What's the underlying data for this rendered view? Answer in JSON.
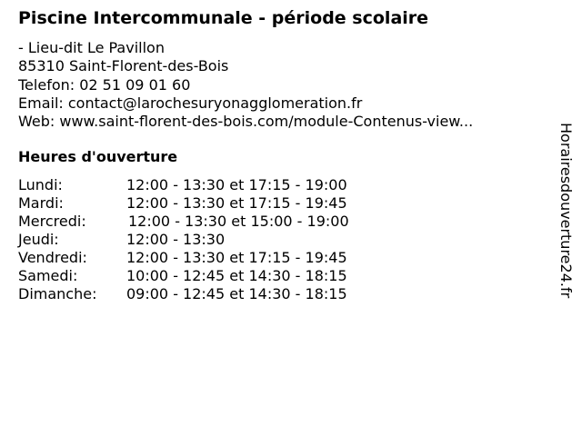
{
  "title": "Piscine Intercommunale - période scolaire",
  "address": {
    "street": "- Lieu-dit Le Pavillon",
    "city": "85310 Saint-Florent-des-Bois",
    "phone": "Telefon: 02 51 09 01 60",
    "email": "Email: contact@larochesuryonagglomeration.fr",
    "web": "Web: www.saint-florent-des-bois.com/module-Contenus-view..."
  },
  "hours_heading": "Heures d'ouverture",
  "hours": [
    {
      "day": "Lundi:",
      "time": "12:00 - 13:30 et 17:15 - 19:00"
    },
    {
      "day": "Mardi:",
      "time": "12:00 - 13:30 et 17:15 - 19:45"
    },
    {
      "day": "Mercredi:",
      "time": "12:00 - 13:30 et 15:00 - 19:00"
    },
    {
      "day": "Jeudi:",
      "time": "12:00 - 13:30"
    },
    {
      "day": "Vendredi:",
      "time": "12:00 - 13:30 et 17:15 - 19:45"
    },
    {
      "day": "Samedi:",
      "time": "10:00 - 12:45 et 14:30 - 18:15"
    },
    {
      "day": "Dimanche:",
      "time": "09:00 - 12:45 et 14:30 - 18:15"
    }
  ],
  "watermark": "Horairesdouverture24.fr"
}
